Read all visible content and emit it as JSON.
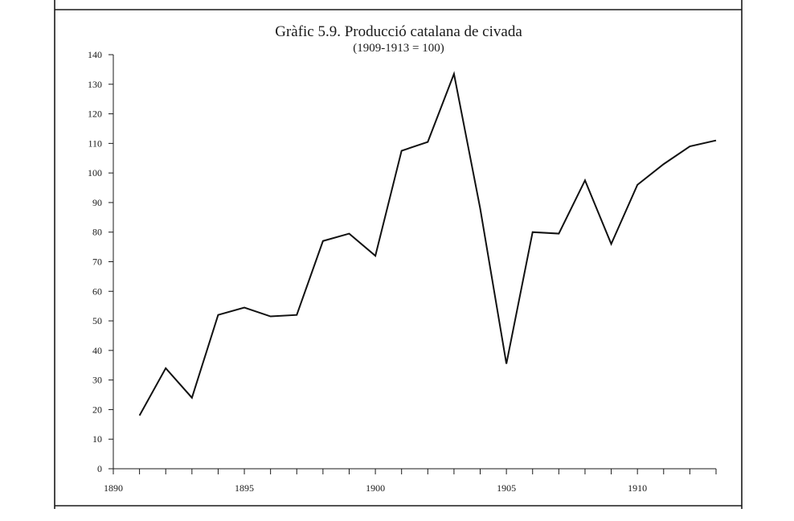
{
  "chart_data": {
    "type": "line",
    "title": "Gràfic 5.9. Producció catalana de civada",
    "subtitle": "(1909-1913 = 100)",
    "xlabel": "",
    "ylabel": "",
    "xlim": [
      1890,
      1913
    ],
    "ylim": [
      0,
      140
    ],
    "x_ticks": [
      1890,
      1895,
      1900,
      1905,
      1910
    ],
    "x_tick_labels": [
      "1890",
      "1895",
      "1900",
      "1905",
      "1910"
    ],
    "y_ticks": [
      0,
      10,
      20,
      30,
      40,
      50,
      60,
      70,
      80,
      90,
      100,
      110,
      120,
      130,
      140
    ],
    "y_tick_labels": [
      "0",
      "10",
      "20",
      "30",
      "40",
      "50",
      "60",
      "70",
      "80",
      "90",
      "100",
      "110",
      "120",
      "130",
      "140"
    ],
    "grid": false,
    "legend": "none",
    "line_color": "#111111",
    "x": [
      1891,
      1892,
      1893,
      1894,
      1895,
      1896,
      1897,
      1898,
      1899,
      1900,
      1901,
      1902,
      1903,
      1904,
      1905,
      1906,
      1907,
      1908,
      1909,
      1910,
      1911,
      1912,
      1913
    ],
    "series": [
      {
        "values": [
          18,
          34,
          24,
          52,
          54.5,
          51.5,
          52,
          77,
          79.5,
          72,
          107.5,
          110.5,
          133.5,
          88,
          35.5,
          80,
          79.5,
          97.5,
          76,
          96,
          103,
          109,
          111
        ]
      }
    ]
  }
}
